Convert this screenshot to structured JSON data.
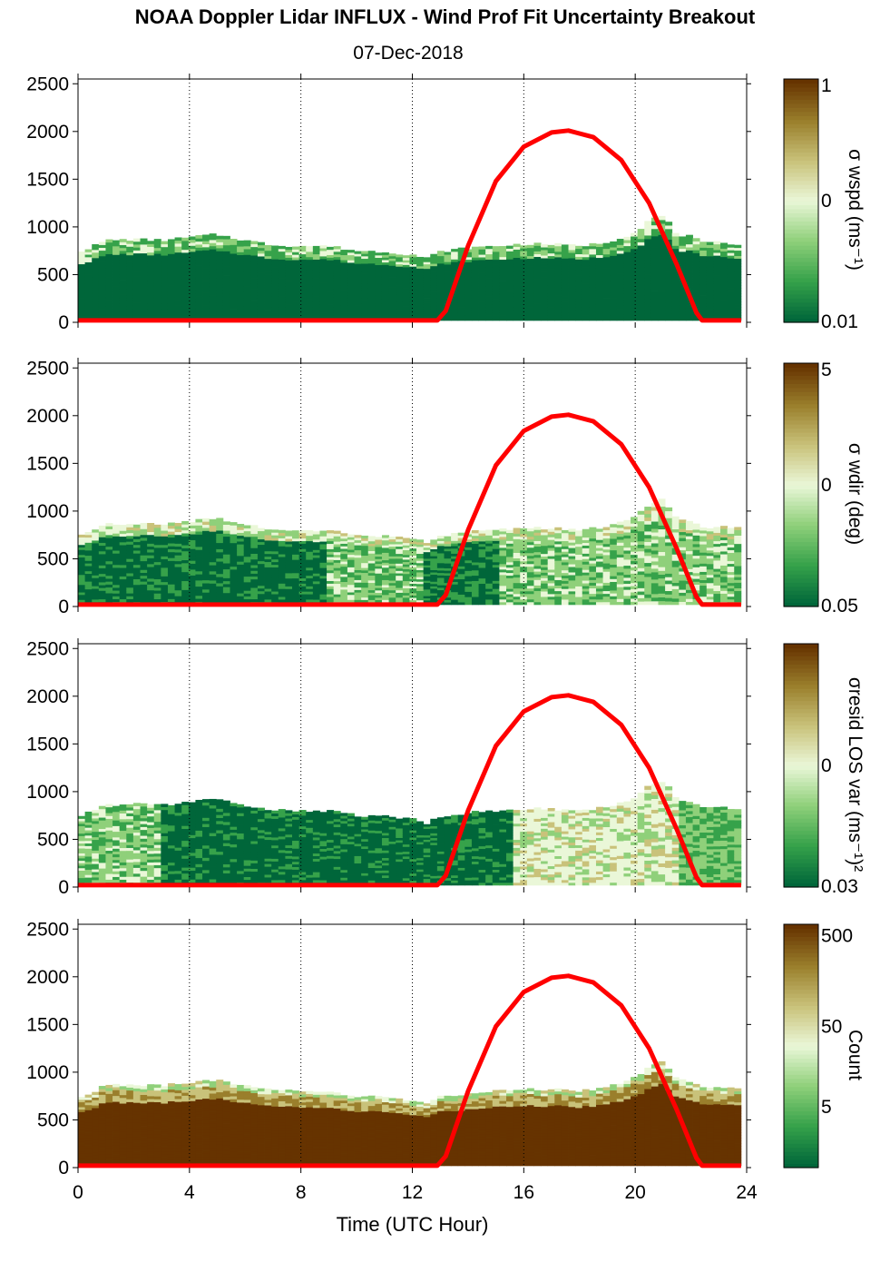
{
  "title": "NOAA Doppler Lidar INFLUX - Wind Prof Fit Uncertainty Breakout",
  "subtitle": "07-Dec-2018",
  "chart_data": {
    "type": "heatmap",
    "xlabel": "Time (UTC Hour)",
    "xlim": [
      0,
      24
    ],
    "xticks": [
      "0",
      "4",
      "8",
      "12",
      "16",
      "20",
      "24"
    ],
    "ylim": [
      0,
      2550
    ],
    "yticks": [
      "0",
      "500",
      "1000",
      "1500",
      "2000",
      "2500"
    ],
    "grid": "dotted vertical lines every 4 hours",
    "colormap": [
      "#00663a",
      "#36a24a",
      "#8fd07a",
      "#eaf7d8",
      "#c9c27a",
      "#9a7f2c",
      "#663300"
    ],
    "overlay_color": "#ff0000",
    "overlay_line": {
      "name": "",
      "x": [
        0,
        12.9,
        13.2,
        14,
        15,
        16,
        17,
        17.6,
        18.5,
        19.5,
        20.5,
        21.5,
        22.2,
        22.4,
        23.8
      ],
      "y": [
        20,
        20,
        120,
        800,
        1480,
        1840,
        1990,
        2010,
        1940,
        1700,
        1250,
        600,
        100,
        20,
        20
      ]
    },
    "cloud_top_height": {
      "x": [
        0,
        0.5,
        1,
        2,
        3,
        4,
        4.5,
        5,
        6,
        7,
        8,
        9,
        10,
        11,
        12,
        12.5,
        13,
        14,
        15,
        16,
        17,
        18,
        19,
        20,
        20.5,
        21,
        21.5,
        22,
        22.5,
        23,
        23.8
      ],
      "y": [
        720,
        770,
        840,
        850,
        840,
        870,
        890,
        900,
        840,
        790,
        780,
        780,
        730,
        720,
        690,
        650,
        720,
        760,
        780,
        800,
        800,
        780,
        820,
        920,
        1050,
        1100,
        900,
        880,
        800,
        820,
        800
      ]
    },
    "panels": [
      {
        "id": "wspd",
        "colorbar_label": "σ wspd (ms⁻¹)",
        "colorbar_ticks": [
          "1",
          "0",
          "0.01"
        ]
      },
      {
        "id": "wdir",
        "colorbar_label": "σ wdir (deg)",
        "colorbar_ticks": [
          "5",
          "0",
          "0.05"
        ]
      },
      {
        "id": "resid",
        "colorbar_label": "σresid LOS var (ms⁻¹)²",
        "colorbar_ticks": [
          "0",
          "0.03"
        ]
      },
      {
        "id": "count",
        "colorbar_label": "Count",
        "colorbar_ticks": [
          "500",
          "50",
          "5"
        ]
      }
    ]
  }
}
